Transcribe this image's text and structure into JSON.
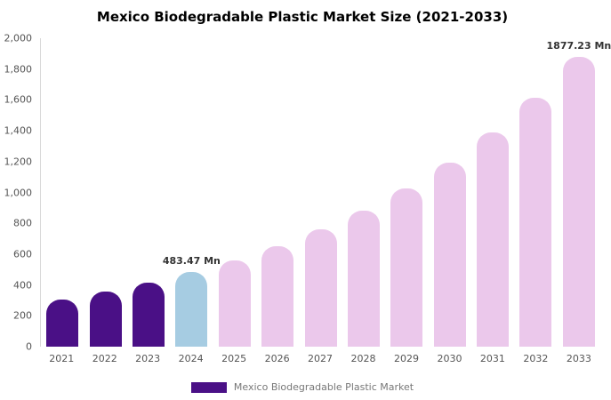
{
  "title": "Mexico Biodegradable Plastic Market Size (2021-2033)",
  "legend": {
    "label": "Mexico Biodegradable Plastic Market",
    "swatch_color": "#4a1086"
  },
  "colors": {
    "historic_bar": "#4a1086",
    "current_bar": "#a6cce2",
    "forecast_bar": "#ebc8eb",
    "axis_text": "#555555",
    "annotation_text": "#333333"
  },
  "chart_data": {
    "type": "bar",
    "title": "Mexico Biodegradable Plastic Market Size (2021-2033)",
    "xlabel": "",
    "ylabel": "",
    "ylim": [
      0,
      2000
    ],
    "ytick_step": 200,
    "grid": false,
    "legend_position": "bottom",
    "categories": [
      "2021",
      "2022",
      "2023",
      "2024",
      "2025",
      "2026",
      "2027",
      "2028",
      "2029",
      "2030",
      "2031",
      "2032",
      "2033"
    ],
    "values": [
      308,
      358,
      416,
      483.47,
      562,
      654,
      760,
      884,
      1027,
      1195,
      1389,
      1615,
      1877.23
    ],
    "bar_color_keys": [
      "historic_bar",
      "historic_bar",
      "historic_bar",
      "current_bar",
      "forecast_bar",
      "forecast_bar",
      "forecast_bar",
      "forecast_bar",
      "forecast_bar",
      "forecast_bar",
      "forecast_bar",
      "forecast_bar",
      "forecast_bar"
    ],
    "annotations": [
      {
        "category": "2024",
        "text": "483.47 Mn"
      },
      {
        "category": "2033",
        "text": "1877.23 Mn"
      }
    ]
  }
}
